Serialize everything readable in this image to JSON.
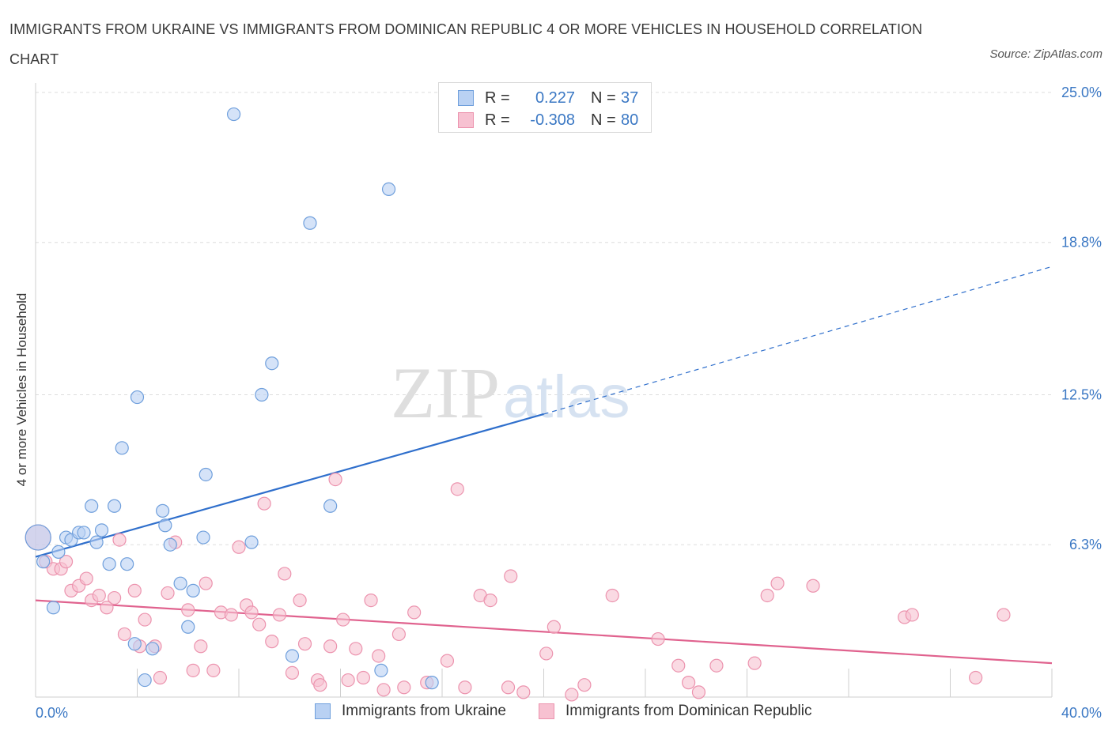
{
  "title": "IMMIGRANTS FROM UKRAINE VS IMMIGRANTS FROM DOMINICAN REPUBLIC 4 OR MORE VEHICLES IN HOUSEHOLD CORRELATION CHART",
  "source": "Source: ZipAtlas.com",
  "watermark": {
    "zip": "ZIP",
    "atlas": "atlas"
  },
  "colors": {
    "ukraine_fill": "#b9d1f3",
    "ukraine_stroke": "#6f9fdc",
    "ukraine_line": "#2f6fcc",
    "dominican_fill": "#f7c1d1",
    "dominican_stroke": "#ec93ae",
    "dominican_line": "#e0628e",
    "tick_label": "#3b78c4",
    "grid": "#dddddd"
  },
  "legend": {
    "rows": [
      {
        "r_label": "R =",
        "r_value": "0.227",
        "n_label": "N =",
        "n_value": "37"
      },
      {
        "r_label": "R =",
        "r_value": "-0.308",
        "n_label": "N =",
        "n_value": "80"
      }
    ]
  },
  "chart_data": {
    "type": "scatter",
    "title": "IMMIGRANTS FROM UKRAINE VS IMMIGRANTS FROM DOMINICAN REPUBLIC 4 OR MORE VEHICLES IN HOUSEHOLD CORRELATION CHART",
    "xlabel": "",
    "ylabel": "4 or more Vehicles in Household",
    "xlim": [
      0,
      40
    ],
    "ylim": [
      0,
      25
    ],
    "x_tick_labels": [
      "0.0%",
      "40.0%"
    ],
    "y_ticks": [
      6.3,
      12.5,
      18.8,
      25.0
    ],
    "y_tick_labels": [
      "6.3%",
      "12.5%",
      "18.8%",
      "25.0%"
    ],
    "grid": true,
    "legend_position": "bottom-center",
    "series": [
      {
        "name": "Immigrants from Ukraine",
        "r": 0.227,
        "n": 37,
        "trend": {
          "x_start": 0,
          "y_start": 5.8,
          "x_solid_end": 20,
          "y_solid_end": 11.7,
          "x_end": 40,
          "y_end": 17.8
        },
        "points": [
          [
            0.1,
            6.6
          ],
          [
            0.3,
            5.6
          ],
          [
            0.7,
            3.7
          ],
          [
            0.9,
            6.0
          ],
          [
            1.2,
            6.6
          ],
          [
            1.4,
            6.5
          ],
          [
            1.7,
            6.8
          ],
          [
            1.9,
            6.8
          ],
          [
            2.2,
            7.9
          ],
          [
            2.4,
            6.4
          ],
          [
            2.6,
            6.9
          ],
          [
            2.9,
            5.5
          ],
          [
            3.1,
            7.9
          ],
          [
            3.4,
            10.3
          ],
          [
            3.6,
            5.5
          ],
          [
            3.9,
            2.2
          ],
          [
            4.0,
            12.4
          ],
          [
            4.3,
            0.7
          ],
          [
            4.6,
            2.0
          ],
          [
            5.0,
            7.7
          ],
          [
            5.1,
            7.1
          ],
          [
            5.3,
            6.3
          ],
          [
            5.7,
            4.7
          ],
          [
            6.0,
            2.9
          ],
          [
            6.2,
            4.4
          ],
          [
            6.6,
            6.6
          ],
          [
            6.7,
            9.2
          ],
          [
            7.8,
            24.1
          ],
          [
            8.5,
            6.4
          ],
          [
            8.9,
            12.5
          ],
          [
            9.3,
            13.8
          ],
          [
            10.1,
            1.7
          ],
          [
            10.8,
            19.6
          ],
          [
            11.6,
            7.9
          ],
          [
            13.6,
            1.1
          ],
          [
            13.9,
            21.0
          ],
          [
            15.6,
            0.6
          ]
        ]
      },
      {
        "name": "Immigrants from Dominican Republic",
        "r": -0.308,
        "n": 80,
        "trend": {
          "x_start": 0,
          "y_start": 4.0,
          "x_end": 40,
          "y_end": 1.4
        },
        "points": [
          [
            0.1,
            6.6
          ],
          [
            0.4,
            5.6
          ],
          [
            0.7,
            5.3
          ],
          [
            1.0,
            5.3
          ],
          [
            1.2,
            5.6
          ],
          [
            1.4,
            4.4
          ],
          [
            1.7,
            4.6
          ],
          [
            2.0,
            4.9
          ],
          [
            2.2,
            4.0
          ],
          [
            2.5,
            4.2
          ],
          [
            2.8,
            3.7
          ],
          [
            3.1,
            4.1
          ],
          [
            3.3,
            6.5
          ],
          [
            3.5,
            2.6
          ],
          [
            3.9,
            4.4
          ],
          [
            4.1,
            2.1
          ],
          [
            4.3,
            3.2
          ],
          [
            4.7,
            2.1
          ],
          [
            4.9,
            0.8
          ],
          [
            5.2,
            4.3
          ],
          [
            5.5,
            6.4
          ],
          [
            6.0,
            3.6
          ],
          [
            6.2,
            1.1
          ],
          [
            6.5,
            2.1
          ],
          [
            6.7,
            4.7
          ],
          [
            7.0,
            1.1
          ],
          [
            7.3,
            3.5
          ],
          [
            7.7,
            3.4
          ],
          [
            8.0,
            6.2
          ],
          [
            8.3,
            3.8
          ],
          [
            8.5,
            3.5
          ],
          [
            8.8,
            3.0
          ],
          [
            9.0,
            8.0
          ],
          [
            9.3,
            2.3
          ],
          [
            9.6,
            3.4
          ],
          [
            9.8,
            5.1
          ],
          [
            10.1,
            1.0
          ],
          [
            10.4,
            4.0
          ],
          [
            10.6,
            2.2
          ],
          [
            11.1,
            0.7
          ],
          [
            11.2,
            0.5
          ],
          [
            11.6,
            2.1
          ],
          [
            11.8,
            9.0
          ],
          [
            12.1,
            3.2
          ],
          [
            12.3,
            0.7
          ],
          [
            12.6,
            2.0
          ],
          [
            12.9,
            0.8
          ],
          [
            13.2,
            4.0
          ],
          [
            13.5,
            1.7
          ],
          [
            13.7,
            0.3
          ],
          [
            14.3,
            2.6
          ],
          [
            14.5,
            0.4
          ],
          [
            14.9,
            3.5
          ],
          [
            15.4,
            0.6
          ],
          [
            16.2,
            1.5
          ],
          [
            16.6,
            8.6
          ],
          [
            16.9,
            0.4
          ],
          [
            17.5,
            4.2
          ],
          [
            17.9,
            4.0
          ],
          [
            18.6,
            0.4
          ],
          [
            18.7,
            5.0
          ],
          [
            19.2,
            0.2
          ],
          [
            20.1,
            1.8
          ],
          [
            20.4,
            2.9
          ],
          [
            21.1,
            0.1
          ],
          [
            21.6,
            0.5
          ],
          [
            22.7,
            4.2
          ],
          [
            24.5,
            2.4
          ],
          [
            25.3,
            1.3
          ],
          [
            25.7,
            0.6
          ],
          [
            26.1,
            0.2
          ],
          [
            26.8,
            1.3
          ],
          [
            28.3,
            1.4
          ],
          [
            28.8,
            4.2
          ],
          [
            29.2,
            4.7
          ],
          [
            30.6,
            4.6
          ],
          [
            34.2,
            3.3
          ],
          [
            34.5,
            3.4
          ],
          [
            37.0,
            0.8
          ],
          [
            38.1,
            3.4
          ]
        ]
      }
    ]
  }
}
